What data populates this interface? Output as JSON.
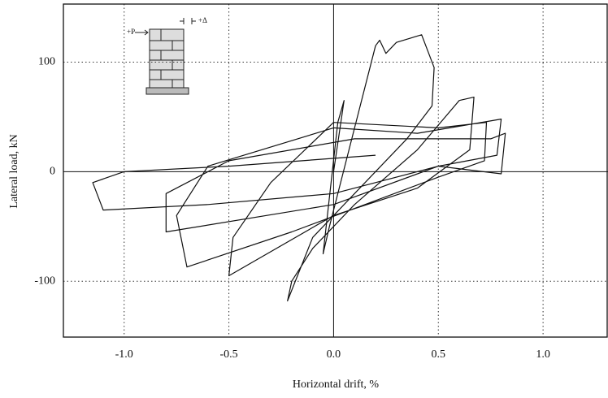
{
  "chart_data": {
    "type": "line",
    "x_label": "Horizontal drift, %",
    "y_label": "Lateral load, kN",
    "annotations": [
      "+P",
      "+Δ"
    ],
    "x": [
      0,
      0.05,
      0.02,
      -0.05,
      -0.02,
      0.2,
      0.22,
      0.25,
      0.3,
      0.42,
      0.48,
      0.47,
      0.35,
      0.1,
      -0.1,
      -0.22,
      -0.2,
      -0.1,
      0.1,
      0.4,
      0.6,
      0.67,
      0.65,
      0.4,
      0,
      -0.5,
      -0.48,
      -0.3,
      0,
      0.5,
      0.73,
      0.72,
      0.5,
      -0.2,
      -0.7,
      -0.75,
      -0.6,
      0,
      0.4,
      0.8,
      0.78,
      0.5,
      0,
      -0.8,
      -0.8,
      -0.5,
      0.1,
      0.75,
      0.82,
      0.8,
      0.5,
      0,
      -0.6,
      -1.1,
      -1.15,
      -1.0,
      -0.5,
      0.2
    ],
    "values": [
      0,
      65,
      45,
      -75,
      -50,
      115,
      120,
      108,
      118,
      125,
      95,
      60,
      30,
      -20,
      -60,
      -118,
      -100,
      -70,
      -30,
      20,
      65,
      68,
      20,
      -15,
      -40,
      -95,
      -60,
      -10,
      45,
      40,
      45,
      10,
      -5,
      -55,
      -87,
      -40,
      5,
      40,
      35,
      48,
      15,
      5,
      -30,
      -55,
      -20,
      10,
      30,
      30,
      35,
      -2,
      5,
      -20,
      -30,
      -35,
      -10,
      0,
      5,
      15
    ],
    "color": "#111111",
    "xlim": [
      -1.29,
      1.31
    ],
    "ylim": [
      -151,
      153
    ],
    "xticks": [
      {
        "value": -1.0,
        "label": "-1.0"
      },
      -0.5,
      {
        "value": 0.0,
        "label": "0.0"
      },
      0.5,
      {
        "value": 1.0,
        "label": "1.0"
      }
    ],
    "yticks": [
      -100,
      0,
      100
    ],
    "grid": true
  }
}
